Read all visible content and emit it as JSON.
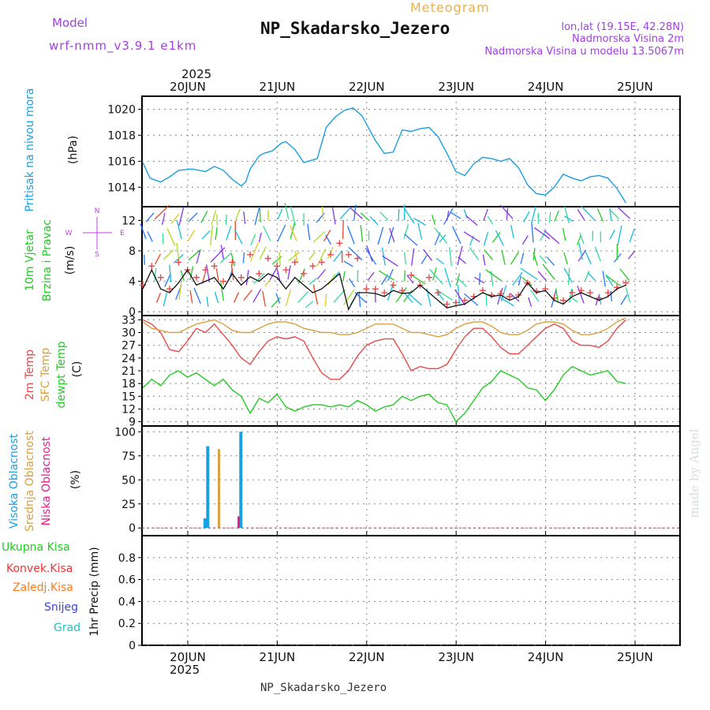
{
  "header": {
    "model_label": "Model",
    "model_name": "wrf-nmm_v3.9.1 e1km",
    "product": "Meteogram",
    "station": "NP_Skadarsko_Jezero",
    "location": "lon,lat (19.15E, 42.28N)",
    "elevation": "Nadmorska Visina 2m",
    "model_elevation": "Nadmorska Visina u modelu 13.5067m"
  },
  "footer": {
    "station": "NP_Skadarsko_Jezero",
    "credit": "made by Angel"
  },
  "colors": {
    "pressure": "#1aa0e0",
    "wind_label": "#22cc22",
    "wind_dir_key": "#c040e0",
    "temp_2m": "#e84a4a",
    "temp_sfc": "#d8a040",
    "dewpoint": "#22cc22",
    "cloud_high": "#1aa0e0",
    "cloud_mid": "#d8a040",
    "cloud_low": "#e0208a",
    "precip_total": "#22cc22",
    "precip_conv": "#ee3333",
    "precip_frz": "#ff7a22",
    "precip_snow": "#4040e0",
    "precip_graupel": "#22c0c0",
    "header_purple": "#a040e0",
    "header_gold": "#e8b050"
  },
  "chart_data": [
    {
      "type": "line",
      "title": "",
      "ylabel_name": "Pritisak na nivou mora",
      "ylabel_unit": "(hPa)",
      "year": "2025",
      "x_ticks": [
        "20JUN",
        "21JUN",
        "22JUN",
        "23JUN",
        "24JUN",
        "25JUN"
      ],
      "ylim": [
        1012.5,
        1021
      ],
      "y_ticks": [
        1014,
        1016,
        1018,
        1020
      ],
      "grid": true,
      "x": [
        0,
        0.08,
        0.2,
        0.3,
        0.4,
        0.55,
        0.7,
        0.8,
        0.9,
        1.0,
        1.1,
        1.15,
        1.2,
        1.3,
        1.35,
        1.45,
        1.55,
        1.6,
        1.7,
        1.8,
        1.95,
        2.05,
        2.15,
        2.25,
        2.35,
        2.45,
        2.6,
        2.7,
        2.8,
        2.9,
        3.0,
        3.1,
        3.2,
        3.3,
        3.4,
        3.5,
        3.6,
        3.7,
        3.8,
        3.9,
        4.0,
        4.1,
        4.2,
        4.3,
        4.4,
        4.5,
        4.6,
        4.7,
        4.8,
        4.9,
        5.0,
        5.1,
        5.2,
        5.3,
        5.4
      ],
      "series": [
        {
          "name": "",
          "values": [
            1015.9,
            1014.7,
            1014.4,
            1014.8,
            1015.3,
            1015.4,
            1015.2,
            1015.6,
            1015.3,
            1014.6,
            1014.1,
            1014.4,
            1015.4,
            1016.4,
            1016.6,
            1016.8,
            1017.4,
            1017.5,
            1016.9,
            1015.9,
            1016.2,
            1018.6,
            1019.4,
            1019.9,
            1020.1,
            1019.5,
            1017.6,
            1016.6,
            1016.7,
            1018.4,
            1018.3,
            1018.5,
            1018.6,
            1017.9,
            1016.6,
            1015.2,
            1014.9,
            1015.8,
            1016.3,
            1016.2,
            1016.0,
            1016.2,
            1015.5,
            1014.2,
            1013.5,
            1013.4,
            1014.0,
            1015.0,
            1014.7,
            1014.5,
            1014.8,
            1014.9,
            1014.7,
            1013.9,
            1012.8
          ]
        }
      ]
    },
    {
      "type": "line",
      "title": "",
      "ylabel_name": "10m Vjetar",
      "ylabel_name2": "Brzina i Pravac",
      "ylabel_unit": "(m/s)",
      "direction_key": [
        "N",
        "W",
        "E",
        "S"
      ],
      "ylim": [
        -0.5,
        13.8
      ],
      "y_ticks": [
        0,
        4,
        8,
        12
      ],
      "grid": true,
      "x": [
        0,
        0.1,
        0.2,
        0.3,
        0.4,
        0.5,
        0.6,
        0.7,
        0.8,
        0.9,
        1.0,
        1.1,
        1.2,
        1.3,
        1.4,
        1.5,
        1.6,
        1.7,
        1.8,
        1.9,
        2.0,
        2.1,
        2.2,
        2.3,
        2.4,
        2.5,
        2.6,
        2.7,
        2.8,
        2.9,
        3.0,
        3.1,
        3.2,
        3.3,
        3.4,
        3.5,
        3.6,
        3.7,
        3.8,
        3.9,
        4.0,
        4.1,
        4.2,
        4.3,
        4.4,
        4.5,
        4.6,
        4.7,
        4.8,
        4.9,
        5.0,
        5.1,
        5.2,
        5.3,
        5.4
      ],
      "series": [
        {
          "name": "",
          "values": [
            3.0,
            5.5,
            3.0,
            2.5,
            3.8,
            5.5,
            3.5,
            4.0,
            4.5,
            3.0,
            5.0,
            3.5,
            4.6,
            4.0,
            5.0,
            4.5,
            3.0,
            4.5,
            3.5,
            2.5,
            3.0,
            4.0,
            5.0,
            0.3,
            2.5,
            2.5,
            2.4,
            2.0,
            2.8,
            2.4,
            2.5,
            3.5,
            2.5,
            1.5,
            0.5,
            0.8,
            1.0,
            1.8,
            2.5,
            2.0,
            2.2,
            1.5,
            2.0,
            3.8,
            2.5,
            2.8,
            1.5,
            1.0,
            2.0,
            2.5,
            2.0,
            1.5,
            2.0,
            3.0,
            3.5
          ]
        },
        {
          "name": "",
          "values": [
            3.5,
            6.0,
            4.5,
            3.0,
            6.5,
            5.5,
            4.5,
            5.5,
            6.0,
            4.0,
            6.5,
            4.5,
            7.5,
            5.0,
            7.0,
            6.0,
            5.5,
            6.5,
            5.0,
            6.0,
            6.5,
            7.5,
            9.0,
            7.5,
            7.0,
            3.0,
            3.0,
            2.5,
            3.5,
            2.8,
            4.8,
            3.5,
            4.5,
            2.5,
            1.0,
            1.2,
            1.5,
            2.0,
            2.8,
            2.2,
            2.4,
            2.0,
            2.2,
            3.8,
            2.7,
            3.0,
            1.8,
            1.5,
            2.5,
            2.8,
            2.5,
            1.8,
            2.5,
            3.2,
            3.8
          ]
        }
      ]
    },
    {
      "type": "line",
      "title": "",
      "ylabel_names": [
        "2m Temp",
        "SFC Temp",
        "dewpt Temp"
      ],
      "ylabel_unit": "(C)",
      "ylim": [
        8,
        34
      ],
      "y_ticks": [
        9,
        12,
        15,
        18,
        21,
        24,
        27,
        30,
        33
      ],
      "grid": true,
      "x": [
        0,
        0.1,
        0.2,
        0.3,
        0.4,
        0.5,
        0.6,
        0.7,
        0.8,
        0.9,
        1.0,
        1.1,
        1.2,
        1.3,
        1.4,
        1.5,
        1.6,
        1.7,
        1.8,
        1.9,
        2.0,
        2.1,
        2.2,
        2.3,
        2.4,
        2.5,
        2.6,
        2.7,
        2.8,
        2.9,
        3.0,
        3.1,
        3.2,
        3.3,
        3.4,
        3.5,
        3.6,
        3.7,
        3.8,
        3.9,
        4.0,
        4.1,
        4.2,
        4.3,
        4.4,
        4.5,
        4.6,
        4.7,
        4.8,
        4.9,
        5.0,
        5.1,
        5.2,
        5.3,
        5.4
      ],
      "series": [
        {
          "name": "",
          "values": [
            33.0,
            32.0,
            30.0,
            26.0,
            25.5,
            28.0,
            31.0,
            30.0,
            32.0,
            29.5,
            27.0,
            24.0,
            22.5,
            25.5,
            28.0,
            29.0,
            28.5,
            29.0,
            28.0,
            24.0,
            20.5,
            19.0,
            19.0,
            21.0,
            24.5,
            27.0,
            28.0,
            28.5,
            28.5,
            25.0,
            21.0,
            22.0,
            21.5,
            21.5,
            22.5,
            26.0,
            29.0,
            31.0,
            31.0,
            29.0,
            26.5,
            25.0,
            25.0,
            27.0,
            29.0,
            31.0,
            32.0,
            31.0,
            28.0,
            27.0,
            27.0,
            26.5,
            28.0,
            31.0,
            33.0
          ]
        },
        {
          "name": "",
          "values": [
            32.5,
            31.0,
            30.5,
            30.0,
            30.0,
            31.0,
            32.0,
            32.5,
            33.0,
            32.0,
            30.5,
            30.0,
            30.0,
            31.0,
            32.0,
            32.5,
            32.5,
            32.0,
            31.0,
            30.5,
            30.0,
            30.0,
            29.5,
            29.5,
            30.0,
            31.0,
            32.0,
            32.0,
            32.0,
            31.0,
            30.0,
            30.0,
            29.5,
            29.0,
            29.5,
            31.0,
            32.0,
            32.5,
            32.5,
            31.5,
            30.0,
            29.5,
            29.5,
            30.5,
            32.0,
            32.5,
            32.5,
            32.0,
            30.5,
            29.5,
            29.5,
            30.0,
            31.0,
            32.5,
            33.5
          ]
        },
        {
          "name": "",
          "values": [
            17.0,
            19.0,
            17.5,
            20.0,
            21.0,
            19.5,
            20.5,
            19.0,
            17.5,
            19.0,
            16.5,
            15.0,
            11.0,
            14.5,
            13.5,
            15.5,
            12.5,
            11.5,
            12.5,
            13.0,
            13.0,
            12.5,
            13.0,
            12.5,
            14.0,
            13.0,
            11.5,
            12.5,
            13.0,
            15.0,
            14.0,
            15.0,
            15.5,
            13.5,
            13.0,
            9.0,
            11.0,
            14.0,
            17.0,
            18.5,
            21.0,
            20.0,
            19.0,
            17.0,
            16.5,
            14.0,
            16.5,
            20.0,
            22.0,
            21.0,
            20.0,
            20.5,
            21.0,
            18.5,
            18.0
          ]
        }
      ]
    },
    {
      "type": "bar",
      "title": "",
      "ylabel_names": [
        "Visoka Oblacnost",
        "Srednja Oblacnost",
        "Niska Oblacnost"
      ],
      "ylabel_unit": "(%)",
      "ylim": [
        -8,
        106
      ],
      "y_ticks": [
        0,
        25,
        50,
        75,
        100
      ],
      "grid": true,
      "series": [
        {
          "name": "",
          "x": [
            0.22,
            0.25,
            0.62
          ],
          "values": [
            10,
            85,
            100
          ]
        },
        {
          "name": "",
          "x": [
            0.38
          ],
          "values": [
            82
          ]
        },
        {
          "name": "",
          "x": [
            0.6
          ],
          "values": [
            12
          ]
        }
      ]
    },
    {
      "type": "bar",
      "title": "",
      "ylabel_names": [
        "Ukupna Kisa",
        "Konvek.Kisa",
        "Zaledj.Kisa",
        "Snijeg",
        "Grad"
      ],
      "ylabel_unit": "1hr Precip (mm)",
      "ylim": [
        0,
        1.0
      ],
      "y_ticks": [
        0,
        0.2,
        0.4,
        0.6,
        0.8
      ],
      "y_tick_labels": [
        "0",
        "0.2",
        "0.4",
        "0.6",
        "0.8"
      ],
      "grid": true,
      "year": "2025",
      "x_ticks": [
        "20JUN",
        "21JUN",
        "22JUN",
        "23JUN",
        "24JUN",
        "25JUN"
      ],
      "series": []
    }
  ]
}
